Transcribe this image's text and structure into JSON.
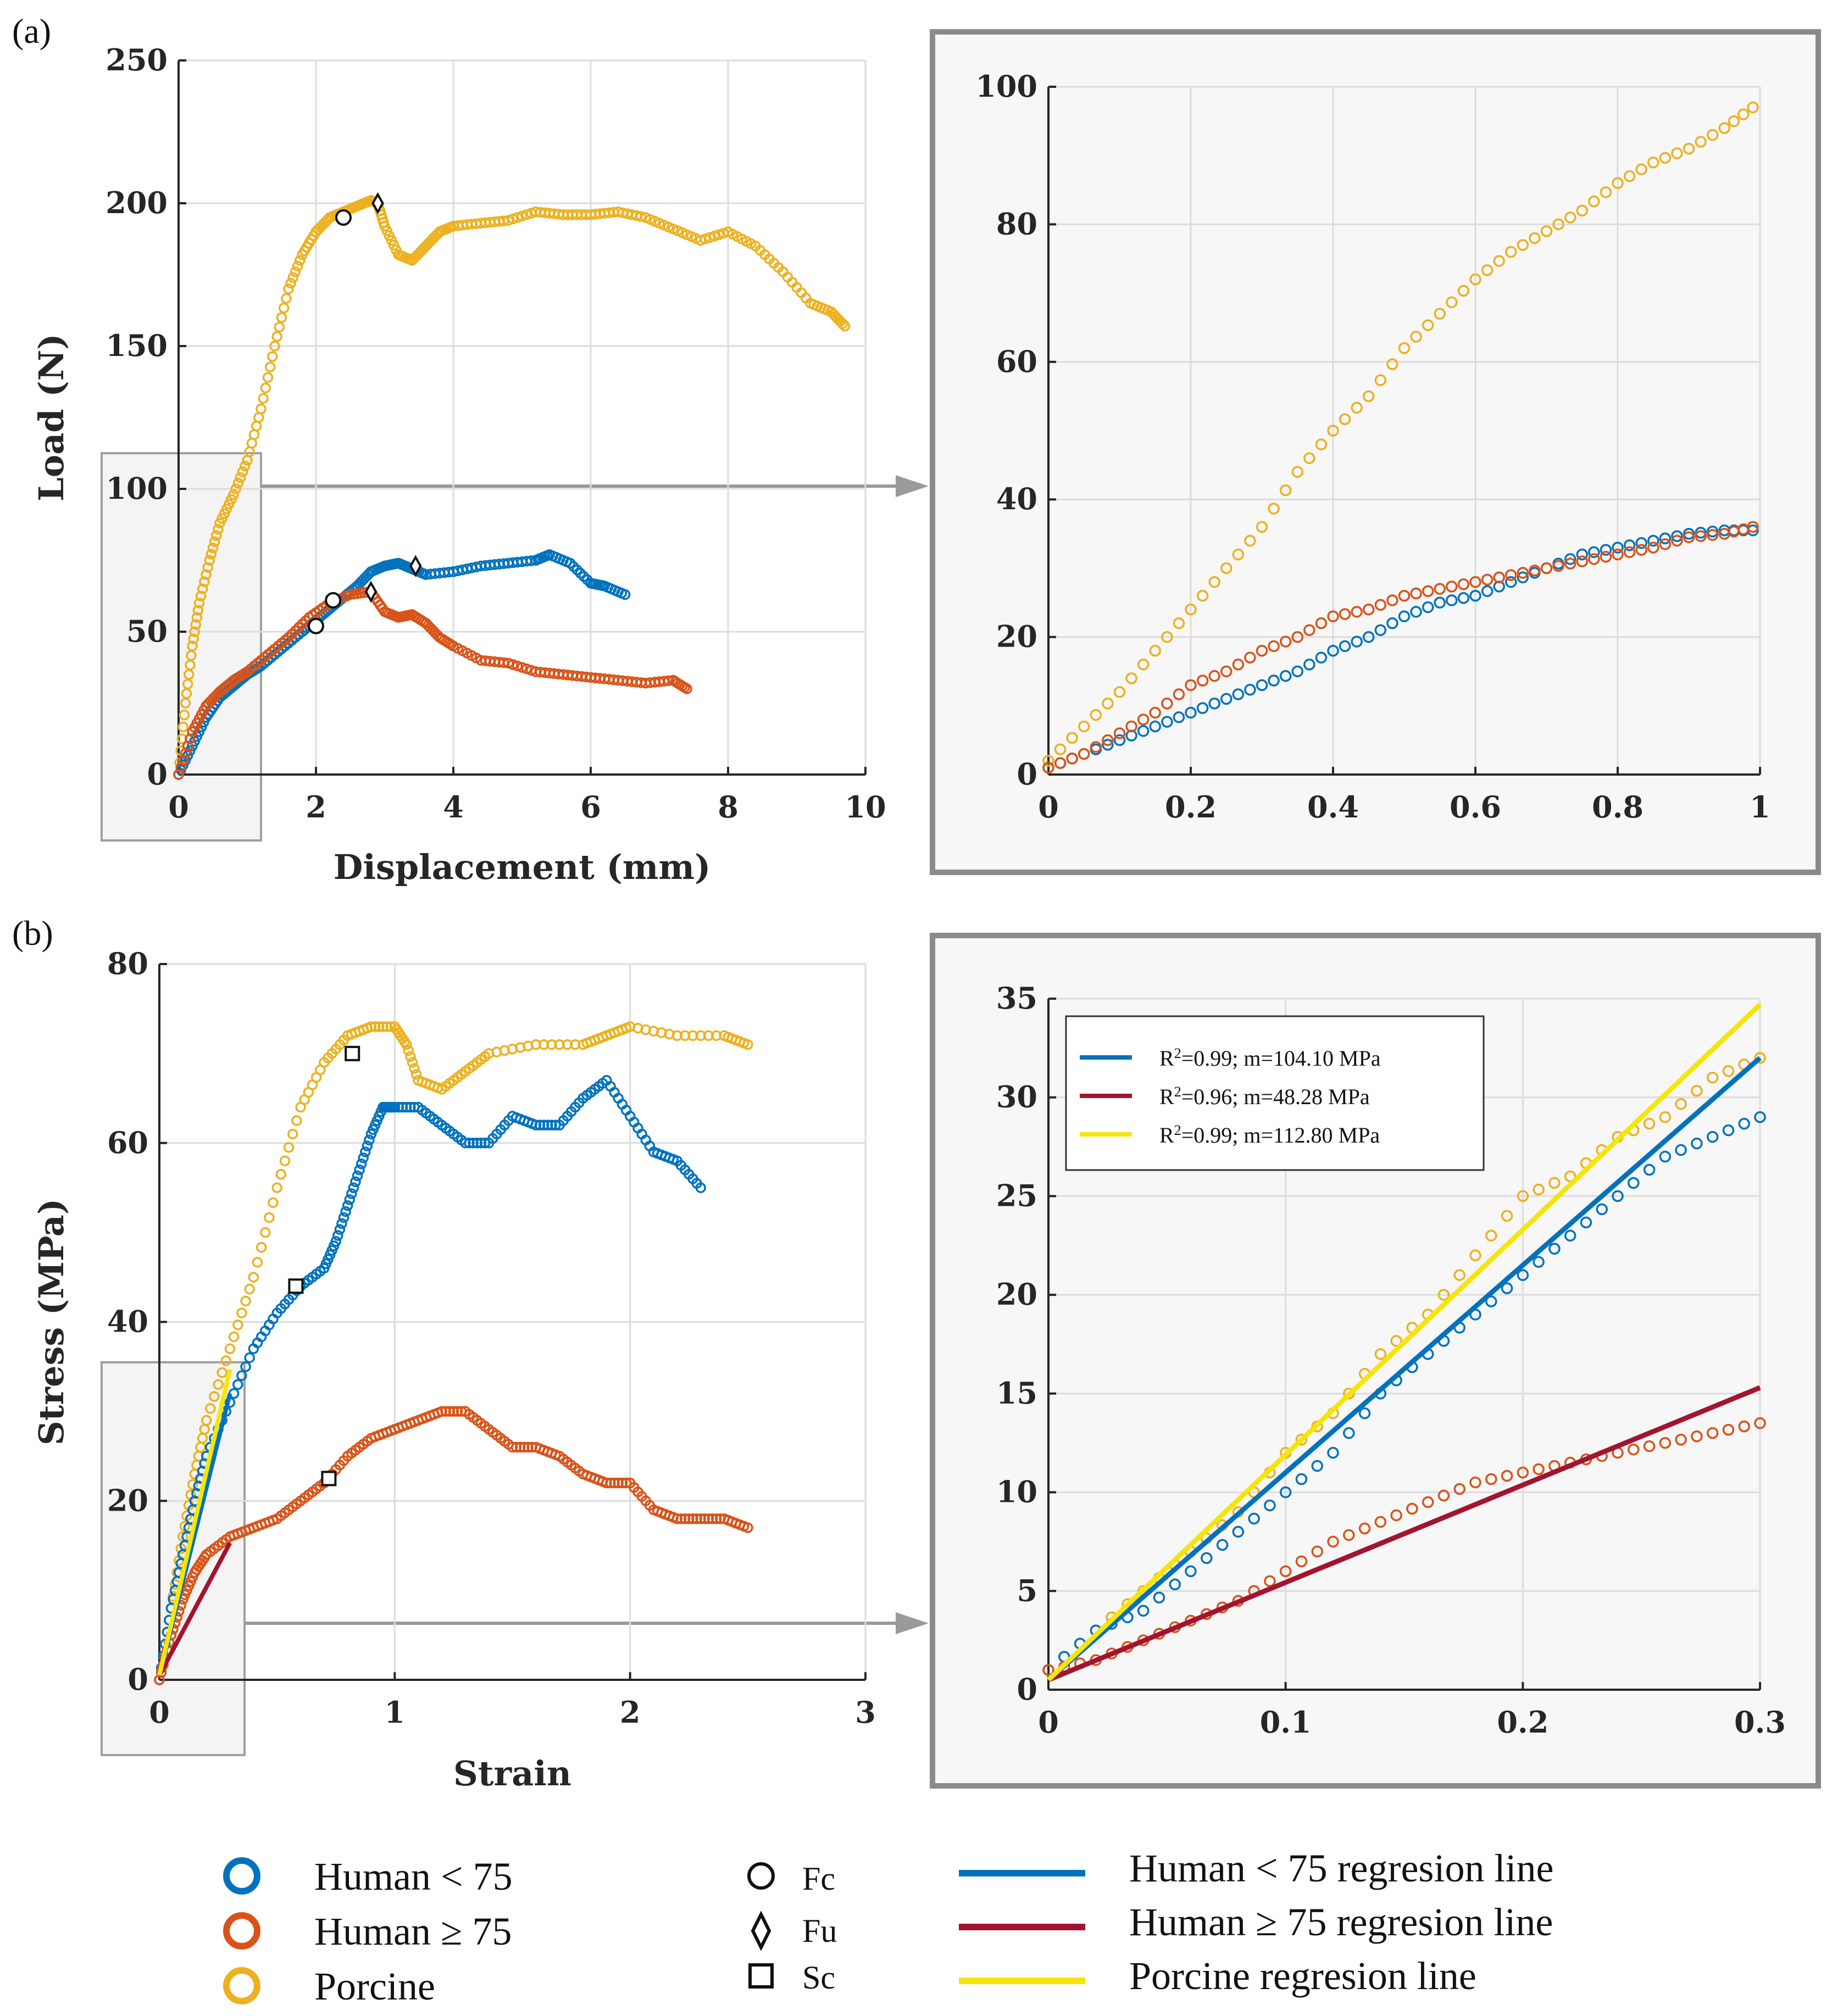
{
  "colors": {
    "human_lt75": "#0072BD",
    "human_ge75": "#D95319",
    "porcine": "#EDB120",
    "reg_human_lt75": "#0072BD",
    "reg_human_ge75": "#A2142F",
    "reg_porcine": "#F5E50A",
    "grid": "#dcdcdc",
    "zoom_box": "#9a9a9a"
  },
  "panels": {
    "a_label": "(a)",
    "b_label": "(b)"
  },
  "legend": {
    "human_lt75": "Human < 75",
    "human_ge75": "Human ≥ 75",
    "porcine": "Porcine",
    "fc": "Fc",
    "fu": "Fu",
    "sc": "Sc",
    "reg_human_lt75": "Human < 75 regresion line",
    "reg_human_ge75": "Human ≥ 75 regresion line",
    "reg_porcine": "Porcine regresion line"
  },
  "fit_legend": {
    "human_lt75": "=0.99; m=104.10 MPa",
    "human_ge75": "=0.96; m=48.28 MPa",
    "porcine": "=0.99; m=112.80 MPa",
    "r_symbol": "R",
    "sup": "2"
  },
  "chart_data": [
    {
      "id": "a_main",
      "type": "scatter",
      "title": "",
      "xlabel": "Displacement (mm)",
      "ylabel": "Load (N)",
      "xlim": [
        0,
        10
      ],
      "ylim": [
        0,
        250
      ],
      "xticks": [
        0,
        2,
        4,
        6,
        8,
        10
      ],
      "yticks": [
        0,
        50,
        100,
        150,
        200,
        250
      ],
      "grid": true,
      "series": [
        {
          "name": "Porcine",
          "color_key": "porcine",
          "x": [
            0,
            0.1,
            0.2,
            0.3,
            0.45,
            0.6,
            0.8,
            1.0,
            1.2,
            1.4,
            1.6,
            1.8,
            2.0,
            2.2,
            2.4,
            2.6,
            2.8,
            2.9,
            3.0,
            3.2,
            3.4,
            3.6,
            3.8,
            4.0,
            4.4,
            4.8,
            5.2,
            5.6,
            6.0,
            6.4,
            6.8,
            7.2,
            7.6,
            8.0,
            8.4,
            8.8,
            9.2,
            9.5,
            9.7
          ],
          "y": [
            0,
            25,
            45,
            60,
            75,
            88,
            98,
            110,
            128,
            150,
            170,
            182,
            190,
            195,
            197,
            199,
            201,
            200,
            192,
            182,
            180,
            185,
            190,
            192,
            193,
            194,
            197,
            196,
            196,
            197,
            195,
            191,
            187,
            190,
            185,
            176,
            165,
            162,
            157
          ]
        },
        {
          "name": "Human < 75",
          "color_key": "human_lt75",
          "x": [
            0,
            0.2,
            0.4,
            0.6,
            0.8,
            1.0,
            1.2,
            1.5,
            1.8,
            2.0,
            2.2,
            2.4,
            2.6,
            2.8,
            3.0,
            3.2,
            3.4,
            3.6,
            4.0,
            4.4,
            4.8,
            5.2,
            5.4,
            5.7,
            6.0,
            6.2,
            6.5
          ],
          "y": [
            0,
            10,
            20,
            27,
            31,
            35,
            38,
            44,
            50,
            54,
            58,
            62,
            66,
            71,
            73,
            74,
            72,
            70,
            71,
            73,
            74,
            75,
            77,
            74,
            67,
            66,
            63
          ]
        },
        {
          "name": "Human ≥ 75",
          "color_key": "human_ge75",
          "x": [
            0,
            0.2,
            0.4,
            0.6,
            0.8,
            1.0,
            1.3,
            1.6,
            1.9,
            2.2,
            2.5,
            2.8,
            3.0,
            3.2,
            3.4,
            3.6,
            3.8,
            4.0,
            4.4,
            4.8,
            5.2,
            5.6,
            6.0,
            6.4,
            6.8,
            7.2,
            7.4
          ],
          "y": [
            0,
            15,
            24,
            29,
            33,
            36,
            42,
            48,
            55,
            60,
            63,
            64,
            57,
            55,
            56,
            53,
            48,
            45,
            40,
            39,
            36,
            35,
            34,
            33,
            32,
            33,
            30
          ]
        }
      ],
      "markers": [
        {
          "type": "Fc",
          "x": 2.4,
          "y": 195
        },
        {
          "type": "Fu",
          "x": 2.9,
          "y": 200
        },
        {
          "type": "Fc",
          "x": 2.0,
          "y": 52
        },
        {
          "type": "Fc",
          "x": 2.25,
          "y": 61
        },
        {
          "type": "Fu",
          "x": 3.45,
          "y": 73
        },
        {
          "type": "Fu",
          "x": 2.8,
          "y": 64
        }
      ]
    },
    {
      "id": "a_zoom",
      "type": "scatter",
      "title": "",
      "xlabel": "",
      "ylabel": "",
      "xlim": [
        0,
        1
      ],
      "ylim": [
        0,
        100
      ],
      "xticks": [
        0,
        0.2,
        0.4,
        0.6,
        0.8,
        1
      ],
      "yticks": [
        0,
        20,
        40,
        60,
        80,
        100
      ],
      "grid": true,
      "series": [
        {
          "name": "Porcine",
          "color_key": "porcine",
          "x": [
            0,
            0.05,
            0.1,
            0.15,
            0.2,
            0.25,
            0.3,
            0.35,
            0.4,
            0.45,
            0.5,
            0.55,
            0.6,
            0.65,
            0.7,
            0.75,
            0.8,
            0.85,
            0.9,
            0.95,
            0.99
          ],
          "y": [
            2,
            7,
            12,
            18,
            24,
            30,
            36,
            44,
            50,
            55,
            62,
            67,
            72,
            76,
            79,
            82,
            86,
            89,
            91,
            94,
            97
          ]
        },
        {
          "name": "Human < 75",
          "color_key": "human_lt75",
          "x": [
            0,
            0.05,
            0.1,
            0.15,
            0.2,
            0.25,
            0.3,
            0.35,
            0.4,
            0.45,
            0.5,
            0.55,
            0.6,
            0.65,
            0.7,
            0.75,
            0.8,
            0.85,
            0.9,
            0.95,
            0.99
          ],
          "y": [
            1,
            3,
            5,
            7,
            9,
            11,
            13,
            15,
            18,
            20,
            23,
            25,
            26,
            28,
            30,
            32,
            33,
            34,
            35,
            35.5,
            35.5
          ]
        },
        {
          "name": "Human ≥ 75",
          "color_key": "human_ge75",
          "x": [
            0,
            0.05,
            0.1,
            0.15,
            0.2,
            0.25,
            0.3,
            0.35,
            0.4,
            0.45,
            0.5,
            0.55,
            0.6,
            0.65,
            0.7,
            0.75,
            0.8,
            0.85,
            0.9,
            0.95,
            0.99
          ],
          "y": [
            1,
            3,
            6,
            9,
            13,
            15,
            18,
            20,
            23,
            24,
            26,
            27,
            28,
            29,
            30,
            31,
            32,
            33,
            34.5,
            35,
            36
          ]
        }
      ]
    },
    {
      "id": "b_main",
      "type": "scatter",
      "title": "",
      "xlabel": "Strain",
      "ylabel": "Stress (MPa)",
      "xlim": [
        0,
        3
      ],
      "ylim": [
        0,
        80
      ],
      "xticks": [
        0,
        1,
        2,
        3
      ],
      "yticks": [
        0,
        20,
        40,
        60,
        80
      ],
      "grid": true,
      "series": [
        {
          "name": "Porcine",
          "color_key": "porcine",
          "x": [
            0,
            0.05,
            0.1,
            0.15,
            0.2,
            0.3,
            0.4,
            0.5,
            0.6,
            0.7,
            0.8,
            0.9,
            1.0,
            1.05,
            1.1,
            1.2,
            1.3,
            1.4,
            1.6,
            1.8,
            1.9,
            2.0,
            2.2,
            2.4,
            2.5
          ],
          "y": [
            0,
            8,
            16,
            23,
            29,
            37,
            45,
            55,
            64,
            69,
            72,
            73,
            73,
            71,
            67,
            66,
            68,
            70,
            71,
            71,
            72,
            73,
            72,
            72,
            71
          ]
        },
        {
          "name": "Human < 75",
          "color_key": "human_lt75",
          "x": [
            0,
            0.05,
            0.1,
            0.15,
            0.2,
            0.3,
            0.4,
            0.5,
            0.6,
            0.7,
            0.75,
            0.8,
            0.85,
            0.9,
            0.95,
            1.0,
            1.1,
            1.2,
            1.3,
            1.4,
            1.5,
            1.6,
            1.7,
            1.8,
            1.9,
            2.0,
            2.1,
            2.2,
            2.3
          ],
          "y": [
            0,
            8,
            14,
            20,
            25,
            31,
            37,
            41,
            44,
            46,
            49,
            53,
            57,
            61,
            64,
            64,
            64,
            62,
            60,
            60,
            63,
            62,
            62,
            65,
            67,
            63,
            59,
            58,
            55
          ]
        },
        {
          "name": "Human ≥ 75",
          "color_key": "human_ge75",
          "x": [
            0,
            0.05,
            0.1,
            0.15,
            0.2,
            0.3,
            0.4,
            0.5,
            0.6,
            0.7,
            0.8,
            0.9,
            1.0,
            1.1,
            1.2,
            1.3,
            1.4,
            1.5,
            1.6,
            1.7,
            1.8,
            1.9,
            2.0,
            2.1,
            2.2,
            2.3,
            2.4,
            2.5
          ],
          "y": [
            0,
            5,
            9,
            12,
            14,
            16,
            17,
            18,
            20,
            22,
            25,
            27,
            28,
            29,
            30,
            30,
            28,
            26,
            26,
            25,
            23,
            22,
            22,
            19,
            18,
            18,
            18,
            17
          ]
        }
      ],
      "regression": [
        {
          "name": "Human < 75 regresion line",
          "color_key": "reg_human_lt75",
          "x": [
            0,
            0.3
          ],
          "y": [
            0.5,
            32
          ]
        },
        {
          "name": "Human ≥ 75 regresion line",
          "color_key": "reg_human_ge75",
          "x": [
            0,
            0.3
          ],
          "y": [
            0.5,
            15.3
          ]
        },
        {
          "name": "Porcine regresion line",
          "color_key": "reg_porcine",
          "x": [
            0,
            0.3
          ],
          "y": [
            0.5,
            34.7
          ]
        }
      ],
      "markers": [
        {
          "type": "Sc",
          "x": 0.82,
          "y": 70
        },
        {
          "type": "Sc",
          "x": 0.58,
          "y": 44
        },
        {
          "type": "Sc",
          "x": 0.72,
          "y": 22.5
        }
      ]
    },
    {
      "id": "b_zoom",
      "type": "scatter",
      "title": "",
      "xlabel": "",
      "ylabel": "",
      "xlim": [
        0,
        0.3
      ],
      "ylim": [
        0,
        35
      ],
      "xticks": [
        0,
        0.1,
        0.2,
        0.3
      ],
      "yticks": [
        0,
        5,
        10,
        15,
        20,
        25,
        30,
        35
      ],
      "grid": true,
      "series": [
        {
          "name": "Porcine",
          "color_key": "porcine",
          "x": [
            0,
            0.02,
            0.04,
            0.06,
            0.08,
            0.1,
            0.12,
            0.14,
            0.16,
            0.18,
            0.2,
            0.22,
            0.24,
            0.26,
            0.28,
            0.3
          ],
          "y": [
            1,
            3,
            5,
            7,
            9,
            12,
            14,
            17,
            19,
            22,
            25,
            26,
            28,
            29,
            31,
            32
          ]
        },
        {
          "name": "Human < 75",
          "color_key": "human_lt75",
          "x": [
            0,
            0.02,
            0.04,
            0.06,
            0.08,
            0.1,
            0.12,
            0.14,
            0.16,
            0.18,
            0.2,
            0.22,
            0.24,
            0.26,
            0.28,
            0.3
          ],
          "y": [
            1,
            3,
            4,
            6,
            8,
            10,
            12,
            15,
            17,
            19,
            21,
            23,
            25,
            27,
            28,
            29
          ]
        },
        {
          "name": "Human ≥ 75",
          "color_key": "human_ge75",
          "x": [
            0,
            0.02,
            0.04,
            0.06,
            0.08,
            0.1,
            0.12,
            0.14,
            0.16,
            0.18,
            0.2,
            0.22,
            0.24,
            0.26,
            0.28,
            0.3
          ],
          "y": [
            1,
            1.5,
            2.5,
            3.5,
            4.5,
            6,
            7.5,
            8.5,
            9.5,
            10.5,
            11,
            11.5,
            12,
            12.5,
            13,
            13.5
          ]
        }
      ],
      "regression": [
        {
          "name": "Human < 75 regresion line",
          "color_key": "reg_human_lt75",
          "x": [
            0,
            0.3
          ],
          "y": [
            0.5,
            32
          ]
        },
        {
          "name": "Human ≥ 75 regresion line",
          "color_key": "reg_human_ge75",
          "x": [
            0,
            0.3
          ],
          "y": [
            0.5,
            15.3
          ]
        },
        {
          "name": "Porcine regresion line",
          "color_key": "reg_porcine",
          "x": [
            0,
            0.3
          ],
          "y": [
            0.5,
            34.7
          ]
        }
      ]
    }
  ]
}
